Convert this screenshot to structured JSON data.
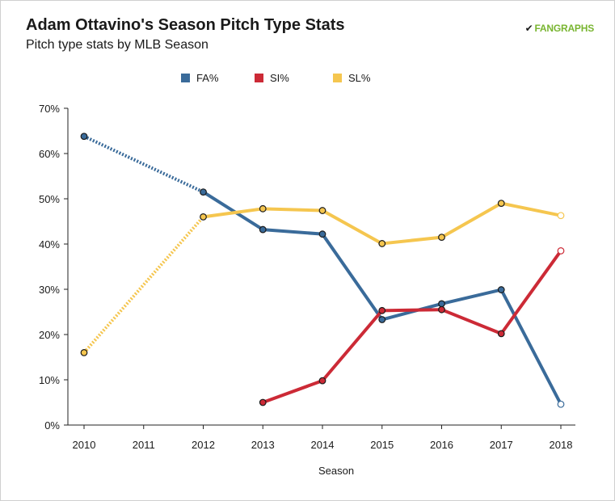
{
  "header": {
    "title": "Adam Ottavino's Season Pitch Type Stats",
    "subtitle": "Pitch type stats by MLB Season",
    "brand_mark": "✔",
    "brand_text": "FANGRAPHS"
  },
  "chart_data": {
    "type": "line",
    "xlabel": "Season",
    "ylabel": "",
    "x": [
      2010,
      2011,
      2012,
      2013,
      2014,
      2015,
      2016,
      2017,
      2018
    ],
    "x_ticks": [
      "2010",
      "2011",
      "2012",
      "2013",
      "2014",
      "2015",
      "2016",
      "2017",
      "2018"
    ],
    "ylim": [
      0,
      70
    ],
    "y_ticks": [
      "0%",
      "10%",
      "20%",
      "30%",
      "40%",
      "50%",
      "60%",
      "70%"
    ],
    "y_tick_values": [
      0,
      10,
      20,
      30,
      40,
      50,
      60,
      70
    ],
    "legend_position": "top",
    "grid": false,
    "series": [
      {
        "name": "FA%",
        "color": "#3a6b9a",
        "points": [
          {
            "x": 2010,
            "y": 63.8
          },
          {
            "x": 2012,
            "y": 51.5
          },
          {
            "x": 2013,
            "y": 43.2
          },
          {
            "x": 2014,
            "y": 42.2
          },
          {
            "x": 2015,
            "y": 23.3
          },
          {
            "x": 2016,
            "y": 26.8
          },
          {
            "x": 2017,
            "y": 29.9
          },
          {
            "x": 2018,
            "y": 4.6
          }
        ]
      },
      {
        "name": "SI%",
        "color": "#cc2a36",
        "points": [
          {
            "x": 2013,
            "y": 5.0
          },
          {
            "x": 2014,
            "y": 9.8
          },
          {
            "x": 2015,
            "y": 25.3
          },
          {
            "x": 2016,
            "y": 25.5
          },
          {
            "x": 2017,
            "y": 20.2
          },
          {
            "x": 2018,
            "y": 38.5
          }
        ]
      },
      {
        "name": "SL%",
        "color": "#f5c64f",
        "points": [
          {
            "x": 2010,
            "y": 16.0
          },
          {
            "x": 2012,
            "y": 46.0
          },
          {
            "x": 2013,
            "y": 47.8
          },
          {
            "x": 2014,
            "y": 47.4
          },
          {
            "x": 2015,
            "y": 40.1
          },
          {
            "x": 2016,
            "y": 41.5
          },
          {
            "x": 2017,
            "y": 49.0
          },
          {
            "x": 2018,
            "y": 46.3
          }
        ]
      }
    ]
  }
}
